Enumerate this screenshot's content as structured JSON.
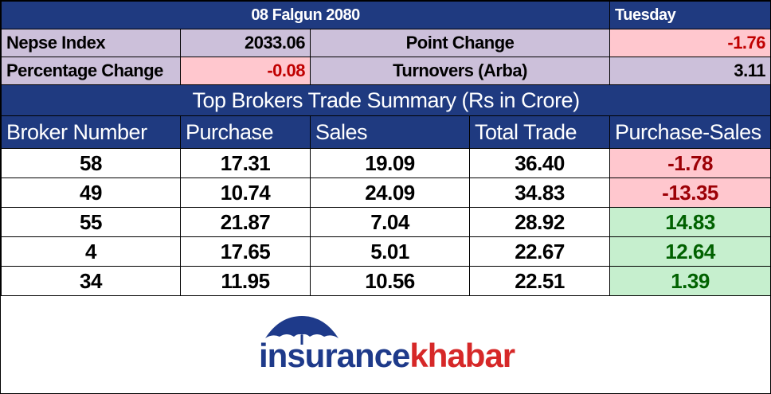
{
  "header": {
    "date": "08 Falgun 2080",
    "day": "Tuesday"
  },
  "summary": {
    "rows": [
      [
        "Nepse Index",
        "2033.06",
        "Point Change",
        "-1.76"
      ],
      [
        "Percentage Change",
        "-0.08",
        "Turnovers (Arba)",
        "3.11"
      ]
    ]
  },
  "table": {
    "title": "Top Brokers Trade Summary (Rs in Crore)",
    "columns": [
      "Broker Number",
      "Purchase",
      "Sales",
      "Total Trade",
      "Purchase-Sales"
    ],
    "rows": [
      [
        "58",
        "17.31",
        "19.09",
        "36.40",
        "-1.78"
      ],
      [
        "49",
        "10.74",
        "24.09",
        "34.83",
        "-13.35"
      ],
      [
        "55",
        "21.87",
        "7.04",
        "28.92",
        "14.83"
      ],
      [
        "4",
        "17.65",
        "5.01",
        "22.67",
        "12.64"
      ],
      [
        "34",
        "11.95",
        "10.56",
        "22.51",
        "1.39"
      ]
    ]
  },
  "logo": {
    "part1": "insurance",
    "part2": "khabar"
  }
}
